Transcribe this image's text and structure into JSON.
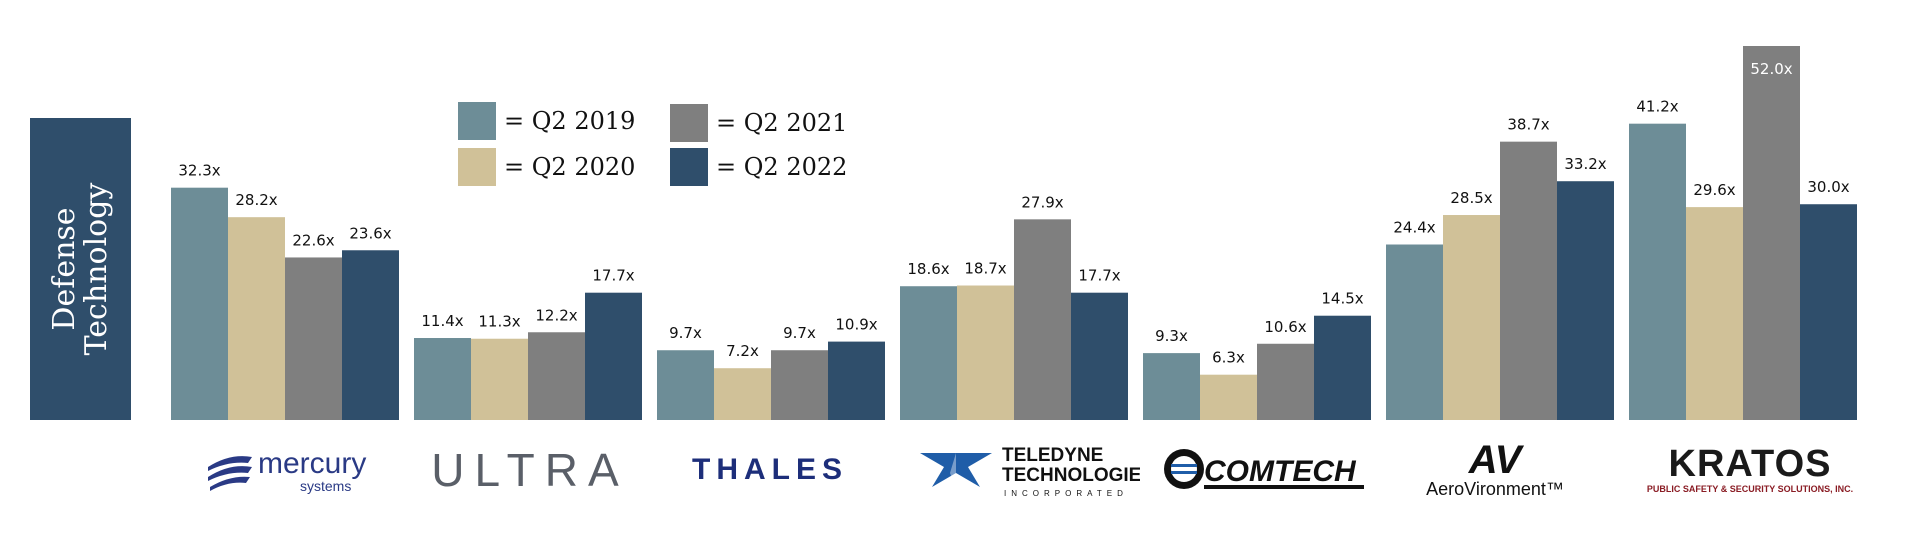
{
  "sidebar": {
    "title": "Defense\nTechnology"
  },
  "colors": {
    "sidebar": "#2f4e6b",
    "Q2 2019": "#6d8d97",
    "Q2 2020": "#d0c198",
    "Q2 2021": "#7f7f7f",
    "Q2 2022": "#2f4e6b"
  },
  "legend": [
    {
      "label": "= Q2 2019"
    },
    {
      "label": "= Q2 2020"
    },
    {
      "label": "= Q2 2021"
    },
    {
      "label": "=  Q2 2022"
    }
  ],
  "logos": {
    "mercury": {
      "word": "mercury",
      "sub": "systems",
      "icon": "mercury-wave-icon"
    },
    "ultra": {
      "word": "ULTRA"
    },
    "thales": {
      "word": "THALES"
    },
    "teledyne": {
      "line1": "TELEDYNE",
      "line2": "TECHNOLOGIES",
      "line3": "INCORPORATED",
      "icon": "teledyne-star-icon"
    },
    "comtech": {
      "word": "COMTECH",
      "icon": "comtech-globe-icon"
    },
    "aerovironment": {
      "mark": "AV",
      "word": "AeroVironment™"
    },
    "kratos": {
      "word": "KRATOS",
      "sub": "PUBLIC SAFETY & SECURITY SOLUTIONS, INC.",
      "icon": "kratos-eagle-icon"
    }
  },
  "chart_data": {
    "type": "bar",
    "categories": [
      "Mercury Systems",
      "Ultra",
      "Thales",
      "Teledyne Technologies",
      "Comtech",
      "AeroVironment",
      "Kratos"
    ],
    "series": [
      {
        "name": "Q2 2019",
        "values": [
          32.3,
          11.4,
          9.7,
          18.6,
          9.3,
          24.4,
          41.2
        ]
      },
      {
        "name": "Q2 2020",
        "values": [
          28.2,
          11.3,
          7.2,
          18.7,
          6.3,
          28.5,
          29.6
        ]
      },
      {
        "name": "Q2 2021",
        "values": [
          22.6,
          12.2,
          9.7,
          27.9,
          10.6,
          38.7,
          52.0
        ]
      },
      {
        "name": "Q2 2022",
        "values": [
          23.6,
          17.7,
          10.9,
          17.7,
          14.5,
          33.2,
          30.0
        ]
      }
    ],
    "value_suffix": "x",
    "ylim": [
      0,
      52.0
    ],
    "grid": false,
    "legend_position": "top-left"
  }
}
